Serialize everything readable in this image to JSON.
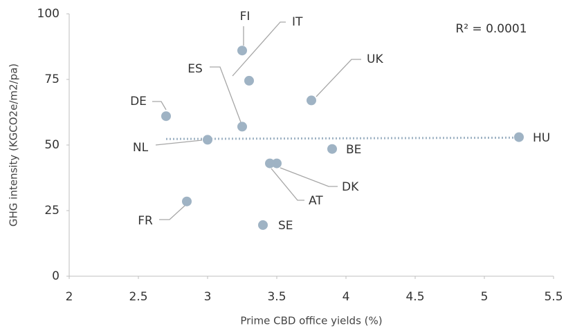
{
  "chart_data": {
    "type": "scatter",
    "x_label": "Prime CBD office yields (%)",
    "y_label": "GHG intensity (KGCO2e/m2/pa)",
    "annotation": "R² = 0.0001",
    "labels": [
      "FI",
      "IT",
      "UK",
      "ES",
      "DE",
      "NL",
      "HU",
      "BE",
      "DK",
      "AT",
      "FR",
      "SE"
    ],
    "x": [
      3.25,
      3.3,
      3.75,
      3.25,
      2.7,
      3.0,
      5.25,
      3.9,
      3.5,
      3.45,
      2.85,
      3.4
    ],
    "values": [
      86,
      74.5,
      67,
      57,
      61,
      52,
      53,
      48.5,
      43,
      43,
      28.5,
      19.5
    ],
    "color": "#9fb3c4",
    "trendline": {
      "x": [
        2.7,
        5.25
      ],
      "values": [
        52.3,
        52.8
      ]
    },
    "xlim": [
      2,
      5.5
    ],
    "xticks": [
      2,
      2.5,
      3,
      3.5,
      4,
      4.5,
      5,
      5.5
    ],
    "ylim": [
      0,
      100
    ],
    "yticks": [
      0,
      25,
      50,
      75,
      100
    ],
    "grid": false
  }
}
